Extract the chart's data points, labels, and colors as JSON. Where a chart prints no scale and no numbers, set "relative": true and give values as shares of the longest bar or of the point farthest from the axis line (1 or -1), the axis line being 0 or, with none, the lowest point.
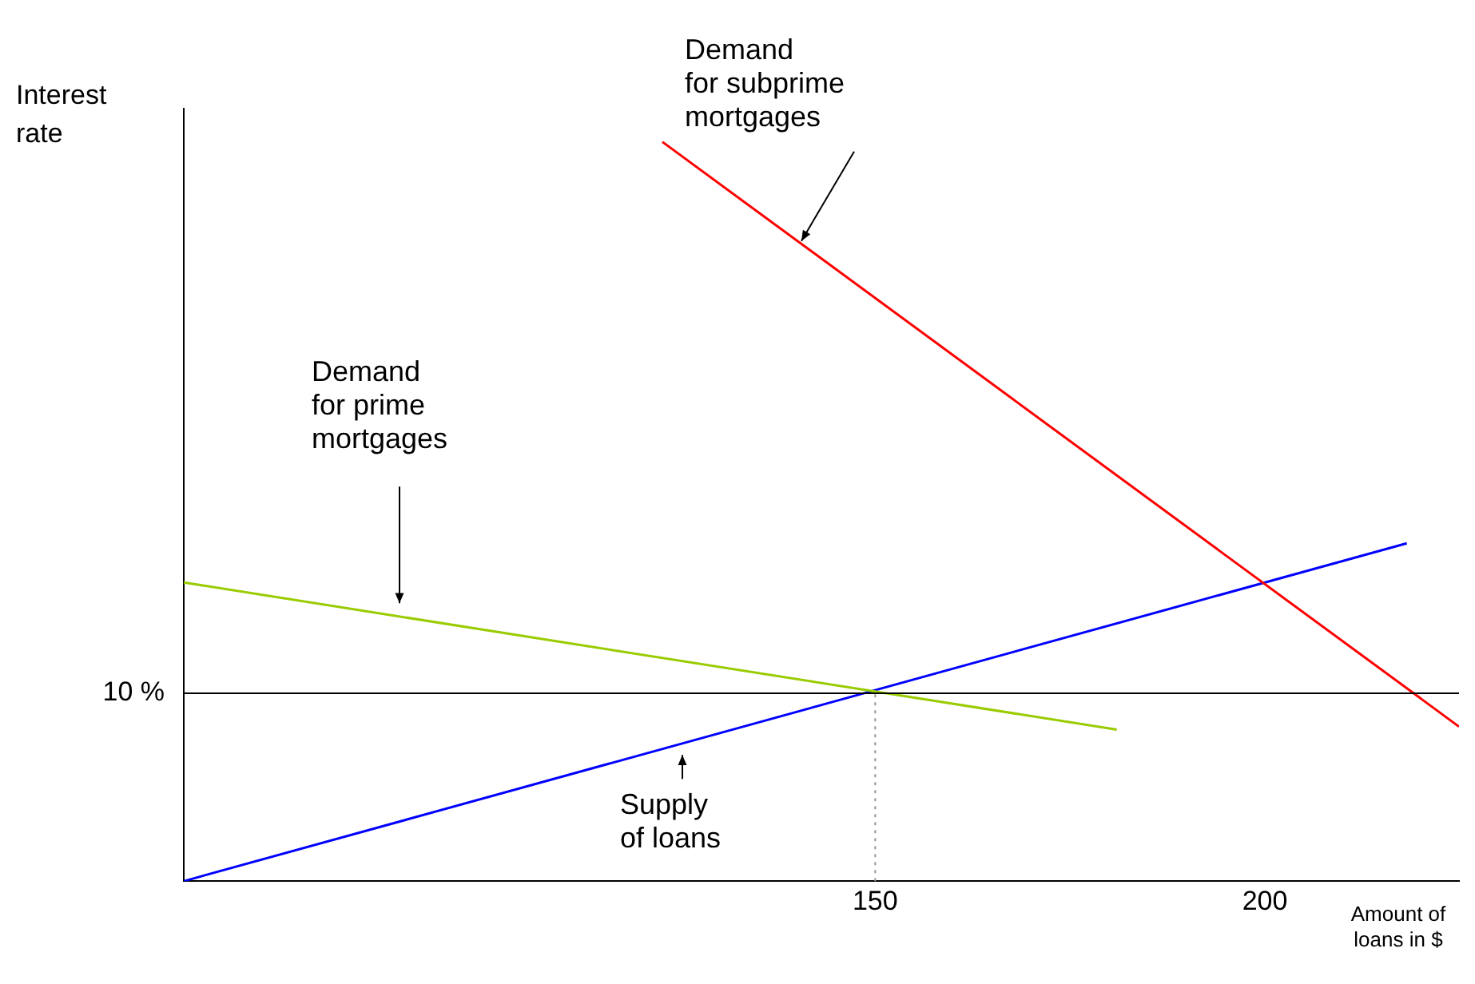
{
  "chart_data": {
    "type": "line",
    "relative": true,
    "xlabel": "Amount of loans in $",
    "ylabel": "Interest rate",
    "annotations": [
      "10 %"
    ],
    "xlim": [
      61.3,
      224.9
    ],
    "xticks": [
      150,
      200
    ],
    "tick_labels": "x",
    "grid": false,
    "legend": false,
    "marker": "none",
    "line_style": "solid",
    "series": [
      {
        "name": "Demand for subprime mortgages",
        "color": "#ff0000",
        "x": [
          122.7,
          224.9
        ],
        "values": [
          1,
          0.209
        ]
      },
      {
        "name": "Demand for prime mortgages",
        "color": "#99cc00",
        "x": [
          61.3,
          181.0
        ],
        "values": [
          0.404,
          0.205
        ]
      },
      {
        "name": "Supply of loans",
        "color": "#0000ff",
        "x": [
          61.3,
          218.2
        ],
        "values": [
          0,
          0.457
        ]
      }
    ],
    "ref_lines": [
      {
        "axis": "y",
        "value": 0.254,
        "color": "#000000",
        "line_style": "solid"
      },
      {
        "axis": "x",
        "value": 150,
        "color": "#999999",
        "line_style": "dotted"
      }
    ]
  }
}
